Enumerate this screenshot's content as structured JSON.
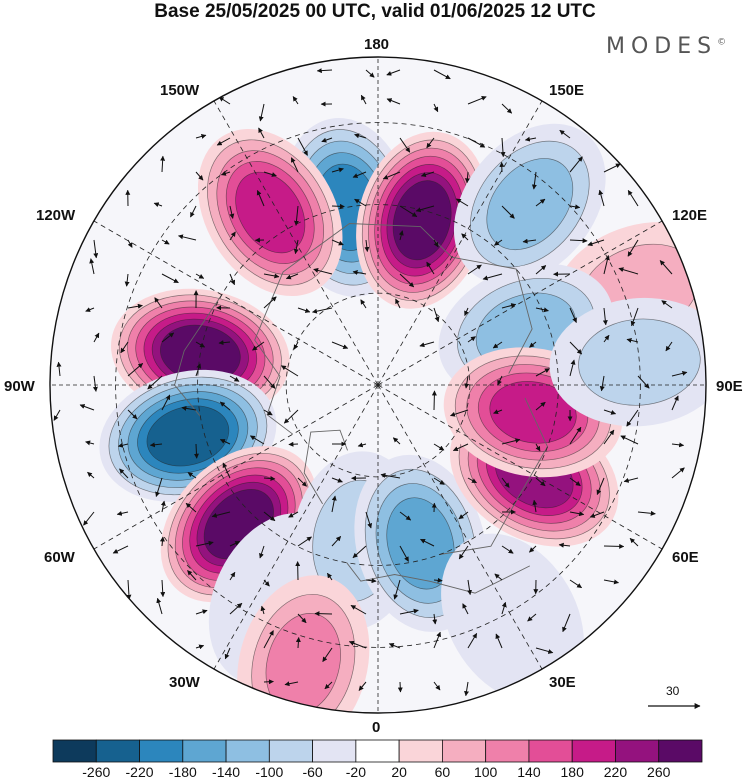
{
  "title": "Base 25/05/2025 00 UTC, valid 01/06/2025 12 UTC",
  "brand": {
    "name": "MODES",
    "mark": "©"
  },
  "longitude_labels": [
    "180",
    "150E",
    "120E",
    "90E",
    "60E",
    "30E",
    "0",
    "30W",
    "60W",
    "90W",
    "120W",
    "150W"
  ],
  "reference_vector": {
    "label": "30"
  },
  "colorbar": {
    "ticks": [
      "-260",
      "-220",
      "-180",
      "-140",
      "-100",
      "-60",
      "-20",
      "20",
      "60",
      "100",
      "140",
      "180",
      "220",
      "260"
    ],
    "colors": [
      "#0d3a5c",
      "#16618f",
      "#2c86bd",
      "#5ea6d2",
      "#8ebfe2",
      "#bdd4ec",
      "#e3e4f3",
      "#ffffff",
      "#fad5d9",
      "#f5aec0",
      "#ef80aa",
      "#e34e97",
      "#c61b88",
      "#94127e",
      "#5a0a66"
    ]
  },
  "map": {
    "projection": "north-polar-stereographic",
    "graticule": "dashed",
    "field_description": "anomaly",
    "features": [
      {
        "id": "low-180-1",
        "kind": "negative",
        "lon": 190,
        "colat": 0.55,
        "strength": "-220"
      },
      {
        "id": "high-160e",
        "kind": "positive",
        "lon": 165,
        "colat": 0.52,
        "strength": "260"
      },
      {
        "id": "high-145w",
        "kind": "positive",
        "lon": 212,
        "colat": 0.62,
        "strength": "180"
      },
      {
        "id": "low-130e",
        "kind": "negative",
        "lon": 140,
        "colat": 0.72,
        "strength": "-140"
      },
      {
        "id": "high-110e",
        "kind": "positive",
        "lon": 110,
        "colat": 0.85,
        "strength": "60"
      },
      {
        "id": "low-120e-inner",
        "kind": "negative",
        "lon": 110,
        "colat": 0.48,
        "strength": "-140"
      },
      {
        "id": "high-100w",
        "kind": "positive",
        "lon": 260,
        "colat": 0.55,
        "strength": "260"
      },
      {
        "id": "low-80w",
        "kind": "negative",
        "lon": 285,
        "colat": 0.6,
        "strength": "-260"
      },
      {
        "id": "high-60w",
        "kind": "positive",
        "lon": 315,
        "colat": 0.6,
        "strength": "260"
      },
      {
        "id": "low-30w",
        "kind": "negative",
        "lon": 335,
        "colat": 0.72,
        "strength": "-60"
      },
      {
        "id": "low-10w",
        "kind": "negative",
        "lon": 352,
        "colat": 0.48,
        "strength": "-100"
      },
      {
        "id": "high-20w",
        "kind": "positive",
        "lon": 345,
        "colat": 0.88,
        "strength": "100"
      },
      {
        "id": "low-15e",
        "kind": "negative",
        "lon": 15,
        "colat": 0.5,
        "strength": "-180"
      },
      {
        "id": "low-30e",
        "kind": "negative",
        "lon": 30,
        "colat": 0.82,
        "strength": "-60"
      },
      {
        "id": "high-60e",
        "kind": "positive",
        "lon": 60,
        "colat": 0.55,
        "strength": "220"
      },
      {
        "id": "high-80e",
        "kind": "positive",
        "lon": 80,
        "colat": 0.48,
        "strength": "180"
      },
      {
        "id": "low-90e",
        "kind": "negative",
        "lon": 95,
        "colat": 0.8,
        "strength": "-100"
      }
    ]
  }
}
